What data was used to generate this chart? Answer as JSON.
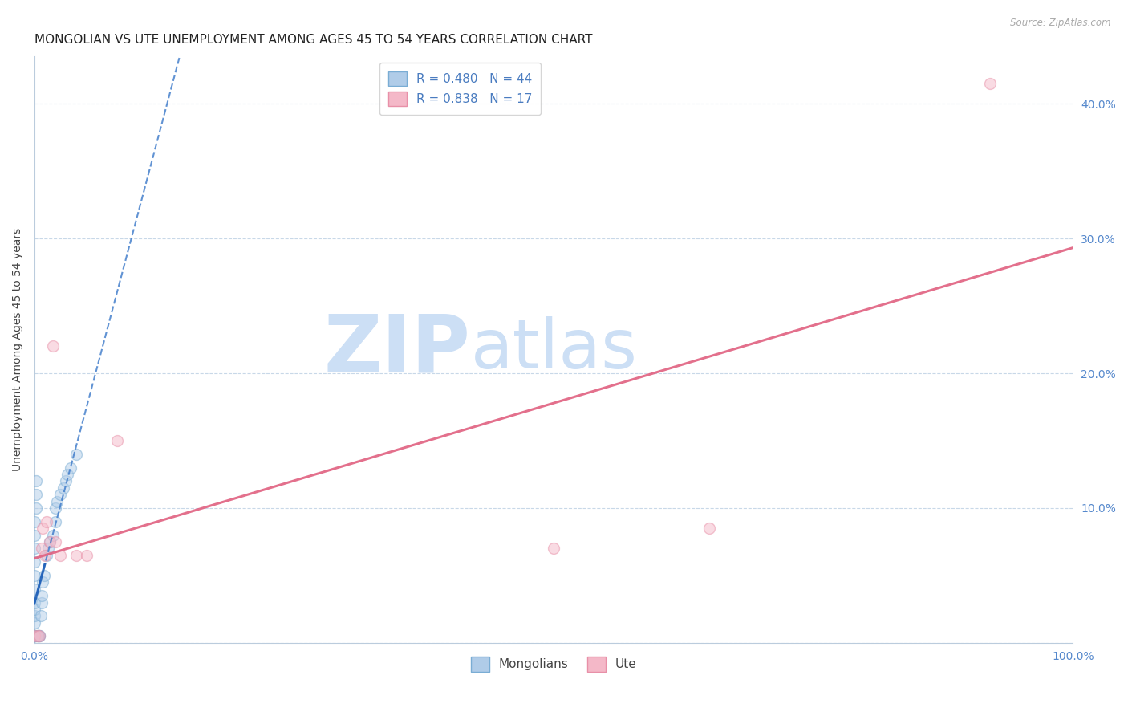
{
  "title": "MONGOLIAN VS UTE UNEMPLOYMENT AMONG AGES 45 TO 54 YEARS CORRELATION CHART",
  "source": "Source: ZipAtlas.com",
  "ylabel": "Unemployment Among Ages 45 to 54 years",
  "xlim": [
    0,
    1.0
  ],
  "ylim": [
    0,
    0.435
  ],
  "xticks": [
    0.0,
    0.1,
    0.2,
    0.3,
    0.4,
    0.5,
    0.6,
    0.7,
    0.8,
    0.9,
    1.0
  ],
  "xticklabels": [
    "0.0%",
    "",
    "",
    "",
    "",
    "",
    "",
    "",
    "",
    "",
    "100.0%"
  ],
  "yticks": [
    0.0,
    0.1,
    0.2,
    0.3,
    0.4
  ],
  "yticklabels": [
    "",
    "10.0%",
    "20.0%",
    "30.0%",
    "40.0%"
  ],
  "mongolian_color": "#b0cce8",
  "mongolian_edge": "#7aadd4",
  "mongolian_line_color": "#3a78c9",
  "mongolian_line_solid_color": "#2060b8",
  "ute_color": "#f4b8c8",
  "ute_edge": "#e890a8",
  "ute_line_color": "#e06080",
  "watermark_zip": "ZIP",
  "watermark_atlas": "atlas",
  "watermark_color": "#ccdff5",
  "legend_line1": "R = 0.480   N = 44",
  "legend_line2": "R = 0.838   N = 17",
  "legend_bottom1": "Mongolians",
  "legend_bottom2": "Ute",
  "mongolian_x": [
    0.0,
    0.0,
    0.0,
    0.0,
    0.0,
    0.0,
    0.0,
    0.0,
    0.0,
    0.0,
    0.0,
    0.0,
    0.0,
    0.0,
    0.0,
    0.0,
    0.0,
    0.002,
    0.002,
    0.002,
    0.003,
    0.003,
    0.004,
    0.004,
    0.005,
    0.005,
    0.006,
    0.007,
    0.007,
    0.008,
    0.009,
    0.012,
    0.013,
    0.015,
    0.018,
    0.02,
    0.02,
    0.022,
    0.025,
    0.028,
    0.03,
    0.032,
    0.035,
    0.04
  ],
  "mongolian_y": [
    0.005,
    0.005,
    0.005,
    0.005,
    0.005,
    0.005,
    0.005,
    0.015,
    0.02,
    0.025,
    0.03,
    0.04,
    0.05,
    0.06,
    0.07,
    0.08,
    0.09,
    0.1,
    0.11,
    0.12,
    0.005,
    0.005,
    0.005,
    0.005,
    0.005,
    0.005,
    0.02,
    0.03,
    0.035,
    0.045,
    0.05,
    0.065,
    0.07,
    0.075,
    0.08,
    0.09,
    0.1,
    0.105,
    0.11,
    0.115,
    0.12,
    0.125,
    0.13,
    0.14
  ],
  "ute_x": [
    0.0,
    0.003,
    0.005,
    0.007,
    0.008,
    0.01,
    0.012,
    0.015,
    0.018,
    0.02,
    0.025,
    0.04,
    0.05,
    0.08,
    0.5,
    0.65,
    0.92
  ],
  "ute_y": [
    0.005,
    0.005,
    0.005,
    0.07,
    0.085,
    0.065,
    0.09,
    0.075,
    0.22,
    0.075,
    0.065,
    0.065,
    0.065,
    0.15,
    0.07,
    0.085,
    0.415
  ],
  "background_color": "#ffffff",
  "grid_color": "#c8d8e8",
  "title_fontsize": 11,
  "axis_label_fontsize": 10,
  "tick_fontsize": 10,
  "marker_size": 100,
  "marker_alpha": 0.5,
  "figsize": [
    14.06,
    8.92
  ],
  "dpi": 100
}
